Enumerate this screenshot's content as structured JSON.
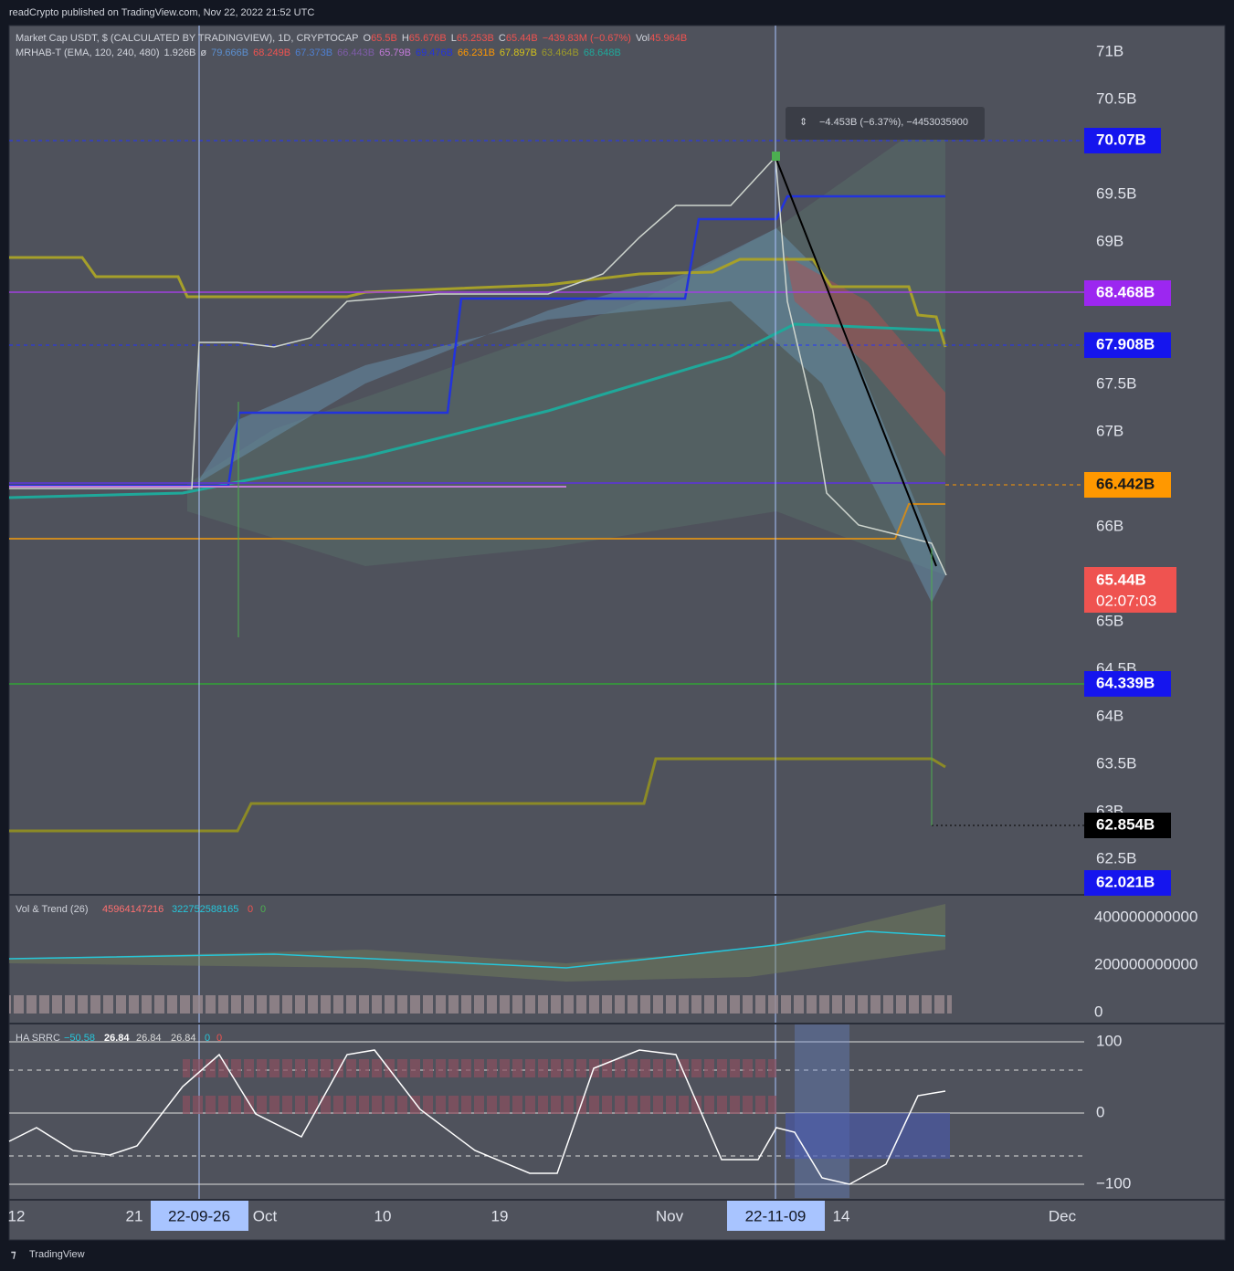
{
  "header": {
    "published": "readCrypto published on TradingView.com, Nov 22, 2022 21:52 UTC"
  },
  "legend": {
    "symbol": "Market Cap USDT, $ (CALCULATED BY TRADINGVIEW), 1D, CRYPTOCAP",
    "ohlc": [
      {
        "key": "O",
        "val": "65.5B"
      },
      {
        "key": "H",
        "val": "65.676B"
      },
      {
        "key": "L",
        "val": "65.253B"
      },
      {
        "key": "C",
        "val": "65.44B"
      }
    ],
    "change": "−439.83M (−0.67%)",
    "vol_key": "Vol",
    "vol": "45.964B",
    "indicator": "MRHAB-T (EMA, 120, 240, 480)",
    "ind_val": "1.926B",
    "ind_sym": "ø",
    "ind_values": [
      {
        "v": "79.666B",
        "c": "#5b8fd0"
      },
      {
        "v": "68.249B",
        "c": "#ef5350"
      },
      {
        "v": "67.373B",
        "c": "#4f7fd0"
      },
      {
        "v": "66.443B",
        "c": "#7e5ca8"
      },
      {
        "v": "65.79B",
        "c": "#c27ad8"
      },
      {
        "v": "69.476B",
        "c": "#2233dd"
      },
      {
        "v": "66.231B",
        "c": "#ff9800"
      },
      {
        "v": "67.897B",
        "c": "#d4c21a"
      },
      {
        "v": "63.464B",
        "c": "#9c9a2a"
      },
      {
        "v": "68.648B",
        "c": "#1fa89a"
      }
    ]
  },
  "tooltip": "−4.453B (−6.37%), −4453035900",
  "price_axis": [
    "71B",
    "70.5B",
    "69.5B",
    "69B",
    "67.5B",
    "67B",
    "66B",
    "65B",
    "64.5B",
    "64B",
    "63.5B",
    "63B",
    "62.5B"
  ],
  "price_tags": [
    "70.07B",
    "68.468B",
    "67.908B",
    "66.442B",
    "65.44B",
    "02:07:03",
    "64.339B",
    "62.854B",
    "62.021B"
  ],
  "volume_pane": {
    "title": "Vol & Trend (26)",
    "values": [
      "45964147216",
      "322752588165",
      "0",
      "0"
    ],
    "axis": [
      "400000000000",
      "200000000000",
      "0"
    ]
  },
  "ha_pane": {
    "title": "HA SRRC",
    "values": [
      "−50.58",
      "26.84",
      "26.84",
      "26.84",
      "0",
      "0"
    ],
    "axis": [
      "100",
      "0",
      "−100"
    ]
  },
  "time_axis": [
    "12",
    "21",
    "22-09-26",
    "Oct",
    "10",
    "19",
    "Nov",
    "22-11-09",
    "14",
    "Dec"
  ],
  "footer": "TradingView"
}
